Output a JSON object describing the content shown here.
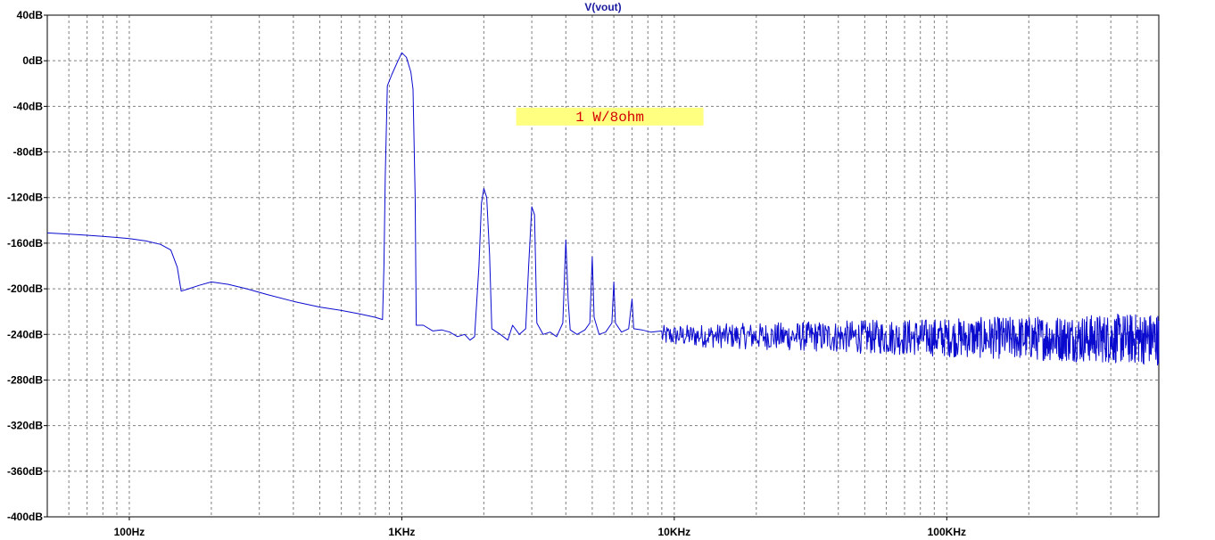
{
  "chart_data": {
    "type": "line",
    "title": "V(vout)",
    "xlabel": "",
    "ylabel": "",
    "x_scale": "log",
    "xlim": [
      50,
      600000
    ],
    "ylim": [
      -400,
      40
    ],
    "grid": true,
    "x_ticks": [
      {
        "value": 100,
        "label": "100Hz"
      },
      {
        "value": 1000,
        "label": "1KHz"
      },
      {
        "value": 10000,
        "label": "10KHz"
      },
      {
        "value": 100000,
        "label": "100KHz"
      }
    ],
    "y_ticks": [
      {
        "value": 40,
        "label": "40dB"
      },
      {
        "value": 0,
        "label": "0dB"
      },
      {
        "value": -40,
        "label": "-40dB"
      },
      {
        "value": -80,
        "label": "-80dB"
      },
      {
        "value": -120,
        "label": "-120dB"
      },
      {
        "value": -160,
        "label": "-160dB"
      },
      {
        "value": -200,
        "label": "-200dB"
      },
      {
        "value": -240,
        "label": "-240dB"
      },
      {
        "value": -280,
        "label": "-280dB"
      },
      {
        "value": -320,
        "label": "-320dB"
      },
      {
        "value": -360,
        "label": "-360dB"
      },
      {
        "value": -400,
        "label": "-400dB"
      }
    ],
    "annotation": {
      "text": "1 W/8ohm",
      "x": 5800,
      "y": -49
    },
    "series": [
      {
        "name": "V(vout)",
        "color": "#0a0acf",
        "points": [
          [
            50,
            -151
          ],
          [
            60,
            -152
          ],
          [
            70,
            -153
          ],
          [
            80,
            -154
          ],
          [
            90,
            -155
          ],
          [
            100,
            -156
          ],
          [
            115,
            -158
          ],
          [
            130,
            -161
          ],
          [
            142,
            -166
          ],
          [
            150,
            -181
          ],
          [
            155,
            -202
          ],
          [
            165,
            -200
          ],
          [
            180,
            -197
          ],
          [
            200,
            -194
          ],
          [
            230,
            -196
          ],
          [
            270,
            -200
          ],
          [
            320,
            -205
          ],
          [
            400,
            -211
          ],
          [
            500,
            -216
          ],
          [
            600,
            -219
          ],
          [
            700,
            -222
          ],
          [
            800,
            -225
          ],
          [
            850,
            -227
          ],
          [
            860,
            -180
          ],
          [
            870,
            -100
          ],
          [
            885,
            -22
          ],
          [
            920,
            -12
          ],
          [
            960,
            -2
          ],
          [
            1000,
            7
          ],
          [
            1040,
            3
          ],
          [
            1080,
            -10
          ],
          [
            1100,
            -25
          ],
          [
            1120,
            -120
          ],
          [
            1130,
            -232
          ],
          [
            1200,
            -232
          ],
          [
            1300,
            -237
          ],
          [
            1400,
            -236
          ],
          [
            1500,
            -238
          ],
          [
            1600,
            -242
          ],
          [
            1700,
            -240
          ],
          [
            1780,
            -245
          ],
          [
            1850,
            -242
          ],
          [
            1920,
            -180
          ],
          [
            1960,
            -125
          ],
          [
            2000,
            -112
          ],
          [
            2050,
            -120
          ],
          [
            2100,
            -170
          ],
          [
            2140,
            -235
          ],
          [
            2300,
            -240
          ],
          [
            2450,
            -245
          ],
          [
            2550,
            -232
          ],
          [
            2700,
            -240
          ],
          [
            2850,
            -235
          ],
          [
            2920,
            -180
          ],
          [
            3000,
            -128
          ],
          [
            3070,
            -135
          ],
          [
            3130,
            -230
          ],
          [
            3300,
            -240
          ],
          [
            3500,
            -238
          ],
          [
            3700,
            -242
          ],
          [
            3900,
            -230
          ],
          [
            4000,
            -157
          ],
          [
            4080,
            -210
          ],
          [
            4150,
            -236
          ],
          [
            4400,
            -240
          ],
          [
            4700,
            -236
          ],
          [
            4900,
            -230
          ],
          [
            5000,
            -172
          ],
          [
            5080,
            -225
          ],
          [
            5300,
            -240
          ],
          [
            5600,
            -238
          ],
          [
            5900,
            -230
          ],
          [
            6000,
            -194
          ],
          [
            6080,
            -230
          ],
          [
            6400,
            -238
          ],
          [
            6800,
            -235
          ],
          [
            7000,
            -209
          ],
          [
            7100,
            -235
          ],
          [
            7600,
            -236
          ],
          [
            8200,
            -238
          ],
          [
            9000,
            -237
          ]
        ],
        "noise": {
          "from": 9000,
          "to": 600000,
          "center_start": -241,
          "center_end": -244,
          "amplitude_start": 9,
          "amplitude_end": 23
        }
      }
    ]
  }
}
